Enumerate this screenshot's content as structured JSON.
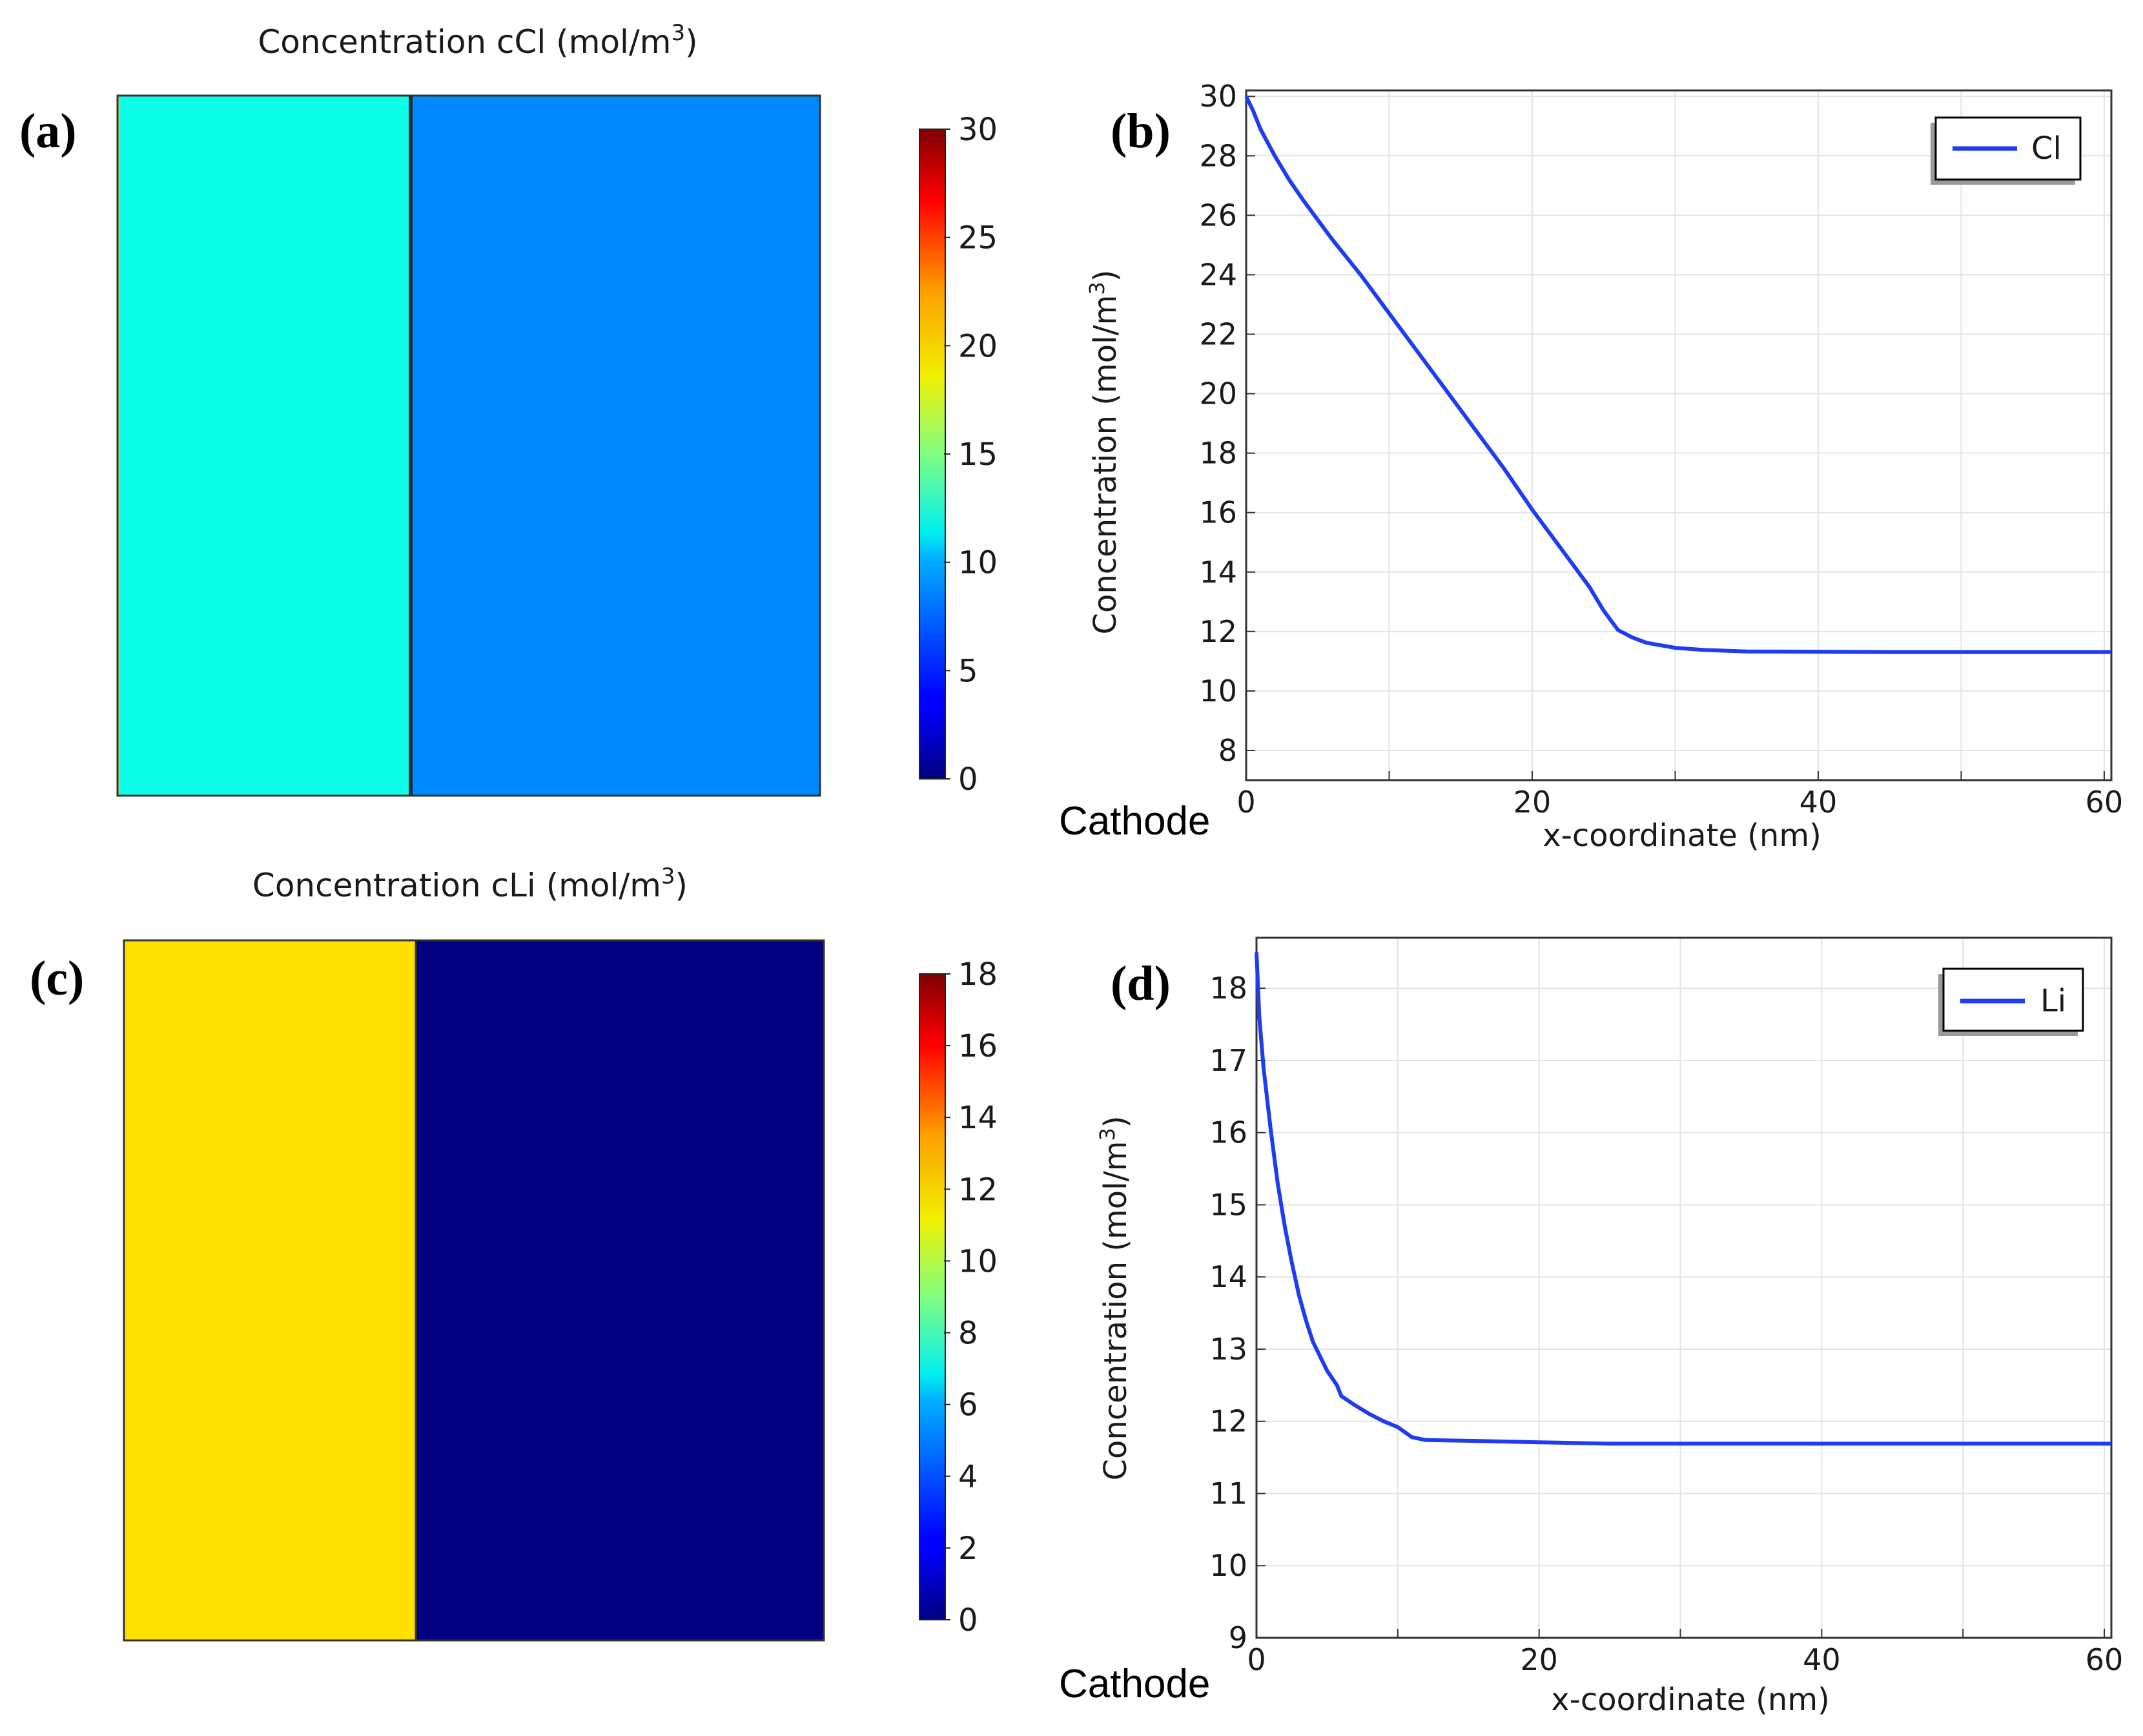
{
  "colors": {
    "cl_left": "#0cfde8",
    "cl_right": "#0088ff",
    "li_left": "#ffdf00",
    "li_right": "#000080",
    "curve": "#1f3cf0",
    "grid": "#e3e3e3",
    "frame": "#333333"
  },
  "chart_data": [
    {
      "panel": "(a)",
      "type": "heatmap",
      "title_main": "Concentration cCl (mol/m",
      "title_sup": "3",
      "title_end": ")",
      "regions": [
        {
          "name": "left",
          "value": 11.5
        },
        {
          "name": "right",
          "value": 7.6
        }
      ],
      "colorbar": {
        "min": 0,
        "max": 30,
        "ticks": [
          "0",
          "5",
          "10",
          "15",
          "20",
          "25",
          "30"
        ]
      }
    },
    {
      "panel": "(b)",
      "type": "line",
      "xlabel": "x-coordinate (nm)",
      "ylabel_main": "Concentration (mol/m",
      "ylabel_sup": "3",
      "ylabel_end": ")",
      "xlim": [
        0,
        60.5
      ],
      "ylim": [
        7,
        30.2
      ],
      "xticks": [
        0,
        20,
        40,
        60
      ],
      "yticks": [
        8,
        10,
        12,
        14,
        16,
        18,
        20,
        22,
        24,
        26,
        28,
        30
      ],
      "xgrid": [
        0,
        10,
        20,
        30,
        40,
        50,
        60
      ],
      "cathode_label": "Cathode",
      "series": [
        {
          "name": "Cl",
          "x": [
            0,
            0.5,
            1,
            2,
            3,
            4,
            6,
            8,
            10,
            12,
            14,
            16,
            18,
            20,
            22,
            24,
            25,
            26,
            27,
            28,
            30,
            32,
            35,
            40,
            45,
            50,
            55,
            60.5
          ],
          "y": [
            30,
            29.5,
            28.9,
            28.0,
            27.2,
            26.5,
            25.2,
            24.0,
            22.7,
            21.4,
            20.1,
            18.8,
            17.5,
            16.1,
            14.8,
            13.5,
            12.7,
            12.05,
            11.8,
            11.62,
            11.45,
            11.38,
            11.33,
            11.32,
            11.31,
            11.31,
            11.31,
            11.31
          ]
        }
      ]
    },
    {
      "panel": "(c)",
      "type": "heatmap",
      "title_main": "Concentration  cLi (mol/m",
      "title_sup": "3",
      "title_end": ")",
      "regions": [
        {
          "name": "left",
          "value": 11.7
        },
        {
          "name": "right",
          "value": 0.2
        }
      ],
      "colorbar": {
        "min": 0,
        "max": 18,
        "ticks": [
          "0",
          "2",
          "4",
          "6",
          "8",
          "10",
          "12",
          "14",
          "16",
          "18"
        ]
      }
    },
    {
      "panel": "(d)",
      "type": "line",
      "xlabel": "x-coordinate (nm)",
      "ylabel_main": "Concentration (mol/m",
      "ylabel_sup": "3",
      "ylabel_end": ")",
      "xlim": [
        0,
        60.5
      ],
      "ylim": [
        9,
        18.7
      ],
      "xticks": [
        0,
        20,
        40,
        60
      ],
      "yticks": [
        9,
        10,
        11,
        12,
        13,
        14,
        15,
        16,
        17,
        18
      ],
      "xgrid": [
        0,
        10,
        20,
        30,
        40,
        50,
        60
      ],
      "cathode_label": "Cathode",
      "series": [
        {
          "name": "Li",
          "x": [
            0,
            0.2,
            0.5,
            1,
            1.5,
            2,
            2.5,
            3,
            3.5,
            4,
            5,
            5.7,
            6,
            7,
            8,
            9,
            10,
            11,
            12,
            15,
            20,
            25,
            30,
            40,
            50,
            60.5
          ],
          "y": [
            18.5,
            17.6,
            16.9,
            16.05,
            15.3,
            14.7,
            14.2,
            13.75,
            13.4,
            13.1,
            12.7,
            12.5,
            12.35,
            12.22,
            12.1,
            12.0,
            11.92,
            11.78,
            11.74,
            11.73,
            11.71,
            11.69,
            11.69,
            11.69,
            11.69,
            11.69
          ]
        }
      ]
    }
  ]
}
